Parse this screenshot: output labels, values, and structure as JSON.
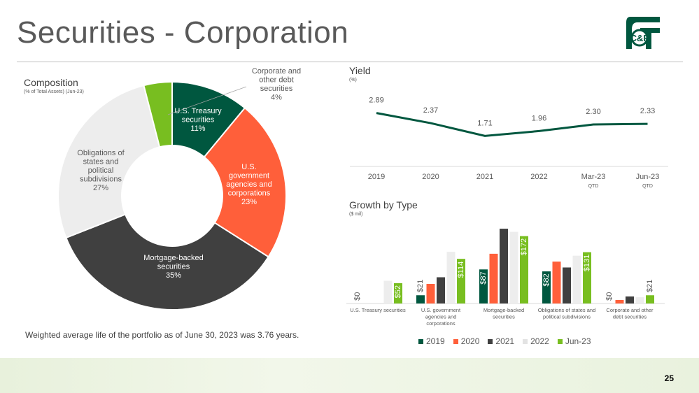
{
  "page": {
    "title": "Securities - Corporation",
    "page_number": "25",
    "note": "Weighted average life of the portfolio as of June 30, 2023 was 3.76 years.",
    "logo_text": "C&F"
  },
  "chart_data": [
    {
      "type": "pie",
      "variant": "donut",
      "title": "Composition",
      "subtitle": "(% of Total Assets) (Jun-23)",
      "slices": [
        {
          "label_lines": [
            "U.S. Treasury",
            "securities",
            "11%"
          ],
          "value": 11,
          "color": "#00573f"
        },
        {
          "label_lines": [
            "U.S.",
            "government",
            "agencies and",
            "corporations",
            "23%"
          ],
          "value": 23,
          "color": "#ff5f3a"
        },
        {
          "label_lines": [
            "Mortgage-backed",
            "securities",
            "35%"
          ],
          "value": 35,
          "color": "#404040"
        },
        {
          "label_lines": [
            "Obligations of",
            "states and",
            "political",
            "subdivisions",
            "27%"
          ],
          "value": 27,
          "color": "#ededed"
        },
        {
          "label_lines": [
            "Corporate and",
            "other debt",
            "securities",
            "4%"
          ],
          "value": 4,
          "color": "#78be20"
        }
      ]
    },
    {
      "type": "line",
      "title": "Yield",
      "subtitle": "(%)",
      "categories": [
        "2019",
        "2020",
        "2021",
        "2022",
        "Mar-23",
        "Jun-23"
      ],
      "sublabels": [
        "",
        "",
        "",
        "",
        "QTD",
        "QTD"
      ],
      "values": [
        2.89,
        2.37,
        1.71,
        1.96,
        2.3,
        2.33
      ],
      "value_labels": [
        "2.89",
        "2.37",
        "1.71",
        "1.96",
        "2.30",
        "2.33"
      ],
      "color": "#00573f",
      "ylim": [
        0,
        4
      ]
    },
    {
      "type": "bar",
      "title": "Growth by Type",
      "subtitle": "($ mil)",
      "categories": [
        [
          "U.S. Treasury securities"
        ],
        [
          "U.S. government",
          "agencies and",
          "corporations"
        ],
        [
          "Mortgage-backed",
          "securities"
        ],
        [
          "Obligations of states and",
          "political subdivisions"
        ],
        [
          "Corporate and other",
          "debt securities"
        ]
      ],
      "series": [
        {
          "name": "2019",
          "color": "#00573f",
          "values": [
            0,
            21,
            87,
            82,
            0
          ]
        },
        {
          "name": "2020",
          "color": "#ff5f3a",
          "values": [
            0,
            50,
            127,
            107,
            9
          ]
        },
        {
          "name": "2021",
          "color": "#404040",
          "values": [
            0,
            67,
            191,
            92,
            18
          ]
        },
        {
          "name": "2022",
          "color": "#ededed",
          "values": [
            58,
            132,
            183,
            122,
            16
          ]
        },
        {
          "name": "Jun-23",
          "color": "#78be20",
          "values": [
            52,
            114,
            172,
            131,
            21
          ]
        }
      ],
      "data_labels": [
        {
          "group": 0,
          "series": 0,
          "text": "$0"
        },
        {
          "group": 0,
          "series": 4,
          "text": "$52"
        },
        {
          "group": 1,
          "series": 0,
          "text": "$21"
        },
        {
          "group": 1,
          "series": 4,
          "text": "$114"
        },
        {
          "group": 2,
          "series": 0,
          "text": "$87"
        },
        {
          "group": 2,
          "series": 4,
          "text": "$172"
        },
        {
          "group": 3,
          "series": 0,
          "text": "$82"
        },
        {
          "group": 3,
          "series": 4,
          "text": "$131"
        },
        {
          "group": 4,
          "series": 0,
          "text": "$0"
        },
        {
          "group": 4,
          "series": 4,
          "text": "$21"
        }
      ],
      "ylim": [
        0,
        200
      ]
    }
  ]
}
